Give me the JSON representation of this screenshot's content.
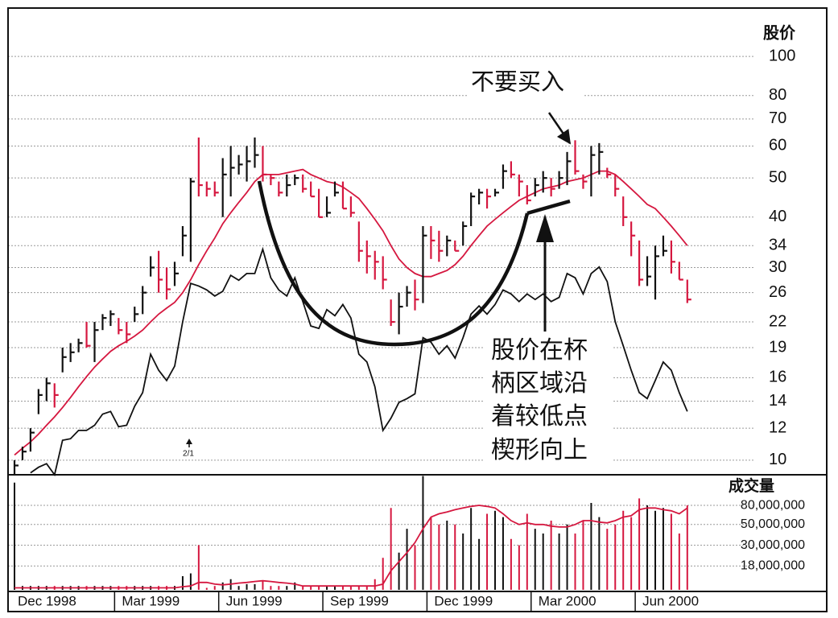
{
  "chart_data": [
    {
      "type": "ohlc",
      "y_label": "股价",
      "log_scale": true,
      "grid": true,
      "ylim": [
        9.2,
        130
      ],
      "yticks": [
        10,
        12,
        14,
        16,
        19,
        22,
        26,
        30,
        34,
        40,
        50,
        60,
        70,
        80,
        100
      ],
      "up_color": "#111111",
      "down_color": "#d5173f",
      "high": [
        10,
        10.8,
        12,
        15,
        16,
        15.5,
        19,
        19.5,
        20,
        22,
        22,
        23,
        23.5,
        22.5,
        22,
        24,
        27,
        32,
        33,
        30,
        31,
        38,
        50,
        63,
        49,
        49,
        56,
        60,
        57,
        60,
        63,
        60,
        51,
        49,
        51,
        51,
        51,
        49,
        47,
        45,
        49,
        49,
        45,
        39,
        35,
        33,
        32,
        25,
        26,
        27,
        28,
        38,
        38,
        37,
        36,
        35,
        39,
        46,
        47,
        47,
        47,
        54,
        55,
        51,
        48,
        50,
        52,
        50,
        52,
        58,
        62,
        51,
        60,
        61,
        53,
        51,
        45,
        39,
        35,
        32,
        34,
        36,
        35,
        31,
        28
      ],
      "low": [
        9.2,
        10,
        10.5,
        13,
        14,
        13.5,
        16.5,
        17.5,
        18.5,
        19,
        17.5,
        21,
        21.5,
        20.5,
        19.5,
        22,
        23,
        28.5,
        26,
        25,
        27,
        32,
        31,
        45,
        45,
        45,
        40,
        45,
        51,
        49,
        53,
        49,
        48,
        45,
        45,
        48,
        46,
        45,
        40,
        40,
        45,
        42,
        40,
        31,
        29,
        28,
        26.5,
        21.5,
        20.5,
        24,
        23.5,
        24.5,
        31.5,
        31,
        32,
        33,
        34,
        38,
        43,
        42,
        45,
        47,
        50,
        45,
        43,
        45,
        46,
        45,
        47,
        48,
        51,
        47,
        45,
        51,
        50,
        45,
        38,
        32,
        27,
        27,
        25,
        32,
        29,
        28,
        24.5
      ],
      "close": [
        9.7,
        10.5,
        11.7,
        14.5,
        15.5,
        14.5,
        18,
        18.5,
        19.5,
        19.2,
        21,
        22.5,
        23,
        21,
        20.5,
        23,
        26,
        30,
        28,
        26.5,
        29,
        36,
        49,
        48,
        47,
        46,
        51,
        53,
        54,
        55,
        57,
        51,
        50,
        46,
        48,
        50,
        47,
        45,
        40,
        41,
        46,
        42,
        41,
        33,
        32,
        31,
        28,
        22,
        24,
        26,
        25,
        36,
        35,
        33,
        35,
        33,
        38,
        45,
        46,
        45,
        46,
        52,
        51,
        49,
        44,
        48,
        50,
        47,
        50,
        55,
        52,
        49,
        57,
        58,
        51,
        47,
        40,
        36,
        28,
        28.5,
        32,
        33,
        31,
        28,
        25
      ],
      "lines": [
        {
          "color": "#d5173f",
          "values": [
            10.3,
            10.7,
            11.1,
            11.6,
            12.2,
            12.8,
            13.5,
            14.3,
            15.2,
            16.1,
            17,
            17.8,
            18.6,
            19.2,
            19.7,
            20.3,
            21,
            22,
            23,
            23.8,
            24.6,
            26,
            28,
            30.5,
            33,
            35.5,
            38.5,
            41,
            43.5,
            46,
            49,
            51,
            51,
            51,
            51.5,
            52,
            52.5,
            51,
            50,
            49,
            48.5,
            47.5,
            46,
            44.5,
            42,
            39.5,
            37,
            34,
            31.5,
            30,
            29,
            28.5,
            28.5,
            29,
            29.5,
            30.5,
            32,
            34,
            36,
            38,
            39.5,
            41,
            42.5,
            44,
            45,
            46,
            47,
            47.5,
            48,
            49,
            49.5,
            50,
            51,
            52,
            52,
            51,
            49,
            47,
            45,
            43,
            42,
            40,
            38,
            36,
            34
          ]
        },
        {
          "color": "#111111",
          "values": [
            null,
            null,
            9.3,
            9.6,
            9.8,
            9.2,
            11.2,
            11.3,
            11.85,
            11.85,
            12.2,
            13.0,
            13.2,
            12.1,
            12.2,
            13.6,
            14.7,
            18.3,
            16.7,
            15.75,
            17.1,
            22.0,
            27.4,
            27.0,
            26.4,
            25.5,
            26.2,
            28.7,
            27.9,
            29.0,
            29.0,
            33.3,
            28.3,
            26.4,
            25.5,
            28.3,
            24.7,
            21.5,
            21.2,
            23.6,
            22.8,
            24.3,
            22.5,
            18.3,
            17.5,
            15.2,
            11.85,
            12.7,
            13.9,
            14.2,
            14.6,
            20.1,
            19.6,
            18.3,
            19.2,
            17.9,
            20.1,
            23.0,
            24.1,
            23.0,
            24.3,
            26.4,
            25.8,
            24.7,
            25.8,
            25.0,
            25.8,
            24.7,
            25.3,
            29.0,
            28.3,
            25.8,
            29.0,
            30.1,
            27.7,
            22.0,
            19.2,
            16.7,
            14.7,
            14.2,
            15.75,
            17.5,
            16.7,
            14.7,
            13.2
          ]
        }
      ],
      "annotations": {
        "warning": "不要买入",
        "split": "2/1",
        "note": [
          "股价在杯",
          "柄区域沿",
          "着较低点",
          "楔形向上"
        ]
      }
    },
    {
      "type": "volume",
      "y_label": "成交量",
      "log_scale": true,
      "grid": true,
      "ylim": [
        10000000,
        170000000
      ],
      "yticks": [
        {
          "value": 18000000,
          "label": "18,000,000"
        },
        {
          "value": 30000000,
          "label": "30,000,000"
        },
        {
          "value": 50000000,
          "label": "50,000,000"
        },
        {
          "value": 80000000,
          "label": "80,000,000"
        }
      ],
      "up_color": "#111111",
      "down_color": "#d5173f",
      "categories": [
        "Dec 1998",
        null,
        null,
        null,
        null,
        null,
        null,
        null,
        null,
        null,
        null,
        null,
        null,
        "Mar 1999",
        null,
        null,
        null,
        null,
        null,
        null,
        null,
        null,
        null,
        null,
        null,
        null,
        "Jun 1999",
        null,
        null,
        null,
        null,
        null,
        null,
        null,
        null,
        null,
        null,
        null,
        null,
        "Sep 1999",
        null,
        null,
        null,
        null,
        null,
        null,
        null,
        null,
        null,
        null,
        null,
        null,
        "Dec 1999",
        null,
        null,
        null,
        null,
        null,
        null,
        null,
        null,
        null,
        null,
        null,
        null,
        "Mar 2000",
        null,
        null,
        null,
        null,
        null,
        null,
        null,
        null,
        null,
        null,
        null,
        null,
        "Jun 2000",
        null,
        null,
        null,
        null,
        null,
        null
      ],
      "values": [
        140000000,
        11000000,
        11000000,
        11000000,
        11000000,
        11000000,
        11000000,
        11000000,
        11000000,
        11000000,
        11000000,
        11000000,
        11000000,
        11000000,
        11000000,
        11000000,
        11000000,
        11000000,
        11000000,
        11000000,
        11000000,
        14000000,
        15000000,
        30000000,
        10500000,
        11000000,
        12000000,
        13000000,
        11000000,
        11500000,
        11500000,
        12500000,
        11000000,
        11000000,
        11000000,
        12000000,
        11000000,
        11000000,
        11000000,
        11000000,
        11000000,
        11000000,
        11000000,
        11000000,
        11000000,
        13000000,
        22000000,
        75000000,
        25000000,
        45000000,
        30000000,
        165000000,
        60000000,
        50000000,
        55000000,
        50000000,
        40000000,
        75000000,
        35000000,
        65000000,
        70000000,
        60000000,
        35000000,
        30000000,
        65000000,
        45000000,
        40000000,
        55000000,
        40000000,
        50000000,
        40000000,
        55000000,
        85000000,
        60000000,
        45000000,
        50000000,
        70000000,
        60000000,
        95000000,
        80000000,
        70000000,
        75000000,
        65000000,
        40000000,
        80000000
      ],
      "line": {
        "color": "#d5173f",
        "values": [
          10500000,
          10500000,
          10500000,
          10500000,
          10500000,
          10500000,
          10500000,
          10500000,
          10500000,
          10500000,
          10500000,
          10500000,
          10500000,
          10500000,
          10500000,
          10500000,
          10500000,
          10500000,
          10500000,
          10500000,
          10500000,
          10800000,
          11000000,
          12000000,
          12000000,
          11500000,
          11300000,
          11500000,
          11800000,
          12000000,
          12300000,
          12500000,
          12300000,
          12000000,
          11800000,
          11500000,
          11000000,
          11000000,
          11000000,
          11000000,
          11000000,
          11000000,
          11000000,
          11000000,
          11000000,
          11000000,
          11500000,
          16000000,
          20000000,
          25000000,
          32000000,
          45000000,
          60000000,
          65000000,
          68000000,
          72000000,
          75000000,
          78000000,
          80000000,
          78000000,
          75000000,
          65000000,
          55000000,
          50000000,
          52000000,
          50000000,
          50000000,
          48000000,
          47000000,
          47000000,
          50000000,
          55000000,
          55000000,
          53000000,
          52000000,
          55000000,
          60000000,
          62000000,
          72000000,
          75000000,
          75000000,
          72000000,
          70000000,
          65000000,
          75000000
        ]
      }
    }
  ]
}
